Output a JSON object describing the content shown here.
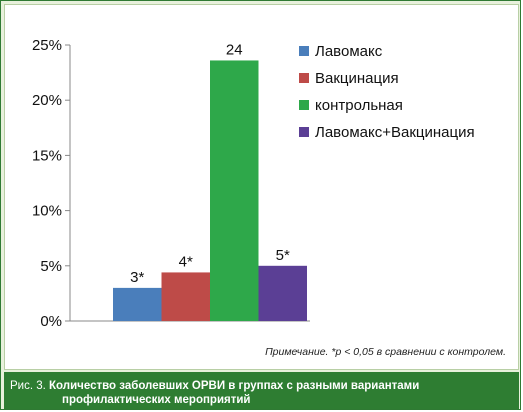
{
  "chart_data": {
    "type": "bar",
    "title": "",
    "xlabel": "",
    "ylabel": "",
    "ylim": [
      0,
      25
    ],
    "yticks": [
      "0%",
      "5%",
      "10%",
      "15%",
      "20%",
      "25%"
    ],
    "grid": false,
    "legend_position": "right",
    "series": [
      {
        "name": "Лавомакс",
        "value": 3,
        "label": "3*",
        "color": "#4a7ebb"
      },
      {
        "name": "Вакцинация",
        "value": 4.4,
        "label": "4*",
        "color": "#be4b48"
      },
      {
        "name": "контрольная",
        "value": 23.6,
        "label": "24",
        "color": "#2ea84a"
      },
      {
        "name": "Лавомакс+Вакцинация",
        "value": 5,
        "label": "5*",
        "color": "#5b3f95"
      }
    ]
  },
  "note": "Примечание. *р < 0,05 в сравнении с контролем.",
  "caption": {
    "label": "Рис. 3.",
    "line1": "Количество заболевших ОРВИ в группах с разными вариантами",
    "line2": "профилактических мероприятий"
  }
}
